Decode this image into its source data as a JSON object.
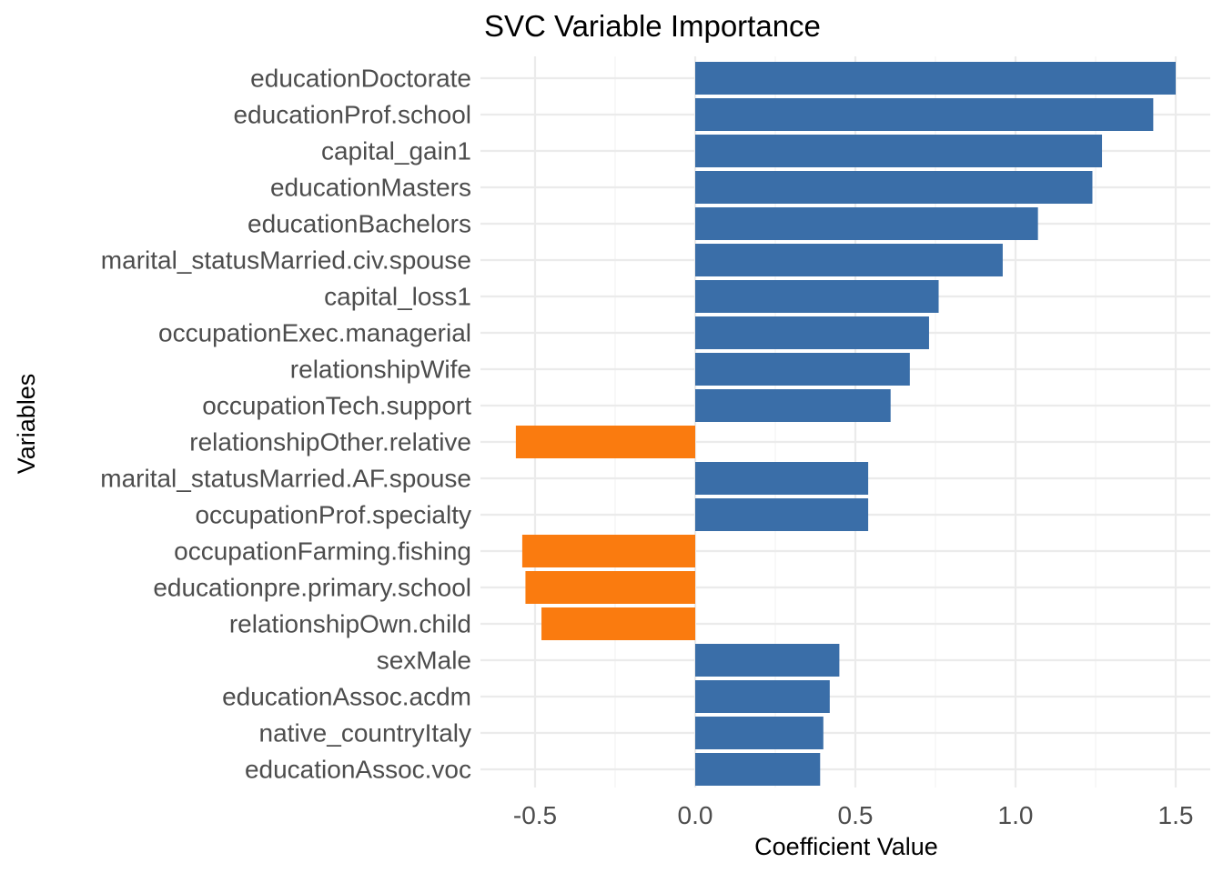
{
  "chart_data": {
    "type": "bar",
    "orientation": "horizontal",
    "title": "SVC Variable Importance",
    "xlabel": "Coefficient Value",
    "ylabel": "Variables",
    "xlim": [
      -0.625,
      1.525
    ],
    "xticks": [
      -0.5,
      0.0,
      0.5,
      1.0,
      1.5
    ],
    "xtick_labels": [
      "-0.5",
      "0.0",
      "0.5",
      "1.0",
      "1.5"
    ],
    "grid": true,
    "legend": "none",
    "colors": {
      "positive": "#3A6EA8",
      "negative": "#FA7B0F"
    },
    "categories": [
      "educationDoctorate",
      "educationProf.school",
      "capital_gain1",
      "educationMasters",
      "educationBachelors",
      "marital_statusMarried.civ.spouse",
      "capital_loss1",
      "occupationExec.managerial",
      "relationshipWife",
      "occupationTech.support",
      "relationshipOther.relative",
      "marital_statusMarried.AF.spouse",
      "occupationProf.specialty",
      "occupationFarming.fishing",
      "educationpre.primary.school",
      "relationshipOwn.child",
      "sexMale",
      "educationAssoc.acdm",
      "native_countryItaly",
      "educationAssoc.voc"
    ],
    "values": [
      1.5,
      1.43,
      1.27,
      1.24,
      1.07,
      0.96,
      0.76,
      0.73,
      0.67,
      0.61,
      -0.56,
      0.54,
      0.54,
      -0.54,
      -0.53,
      -0.48,
      0.45,
      0.42,
      0.4,
      0.39
    ]
  }
}
